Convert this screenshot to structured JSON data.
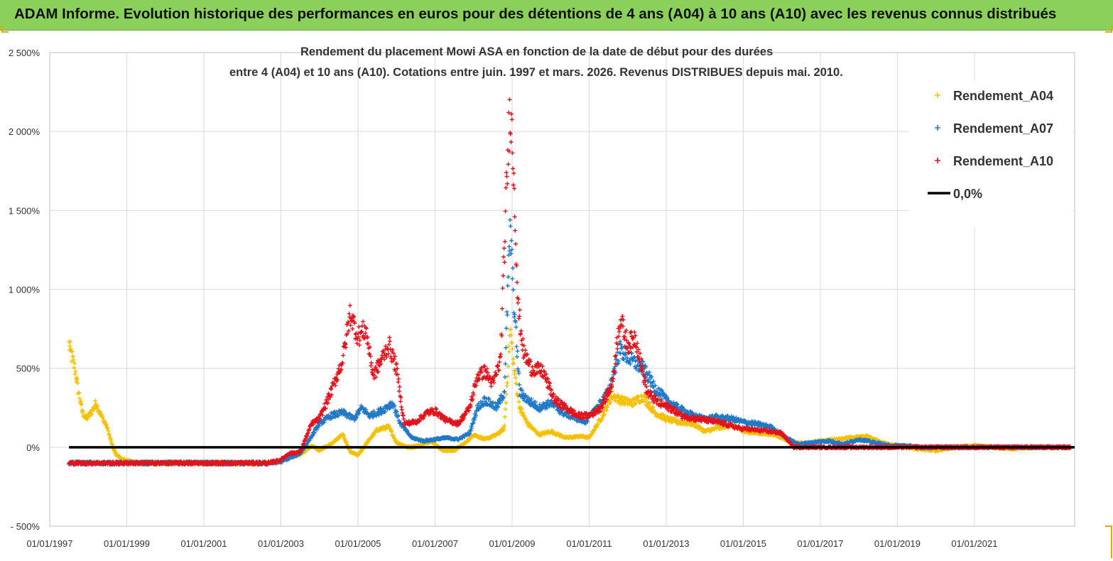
{
  "header": {
    "title": "ADAM Informe. Evolution historique des performances en euros pour des détentions de 4 ans (A04) à 10 ans (A10) avec les revenus connus distribués"
  },
  "colors": {
    "header_bg": "#8bd05a",
    "a04": "#f5c000",
    "a07": "#1f78c8",
    "a10": "#e3121b",
    "zero_line": "#000000",
    "grid": "#d9d9d9"
  },
  "chart_data": {
    "type": "scatter",
    "title_line1": "Rendement du placement Mowi ASA en fonction de la date de début pour des durées",
    "title_line2": "entre 4 (A04) et 10 ans (A10).  Cotations entre juin. 1997 et mars. 2026. Revenus DISTRIBUES depuis mai. 2010.",
    "xlabel": "",
    "ylabel": "",
    "xlim": [
      1997.0,
      2023.6
    ],
    "ylim": [
      -500,
      2500
    ],
    "x_ticks": [
      1997,
      1999,
      2001,
      2003,
      2005,
      2007,
      2009,
      2011,
      2013,
      2015,
      2017,
      2019,
      2021
    ],
    "x_tick_labels": [
      "01/01/1997",
      "01/01/1999",
      "01/01/2001",
      "01/01/2003",
      "01/01/2005",
      "01/01/2007",
      "01/01/2009",
      "01/01/2011",
      "01/01/2013",
      "01/01/2015",
      "01/01/2017",
      "01/01/2019",
      "01/01/2021"
    ],
    "y_ticks": [
      -500,
      0,
      500,
      1000,
      1500,
      2000,
      2500
    ],
    "y_tick_labels": [
      "- 500%",
      "0%",
      "500%",
      "1 000%",
      "1 500%",
      "2 000%",
      "2 500%"
    ],
    "legend_position": "top-right",
    "legend": [
      "Rendement_A04",
      "Rendement_A07",
      "Rendement_A10",
      "0,0%"
    ],
    "reference_line": {
      "name": "0,0%",
      "y": 0
    },
    "series": [
      {
        "name": "Rendement_A04",
        "x": [
          1997.5,
          1997.55,
          1997.65,
          1997.75,
          1997.85,
          1997.95,
          1998.1,
          1998.2,
          1998.3,
          1998.4,
          1998.5,
          1998.6,
          1998.7,
          1998.9,
          1999.3,
          2000,
          2001,
          2002,
          2002.6,
          2003,
          2003.3,
          2003.6,
          2003.8,
          2004.0,
          2004.3,
          2004.6,
          2004.8,
          2005.0,
          2005.3,
          2005.5,
          2005.8,
          2006.0,
          2006.3,
          2006.6,
          2006.9,
          2007.2,
          2007.5,
          2007.8,
          2008.0,
          2008.3,
          2008.6,
          2008.8,
          2008.95,
          2009.05,
          2009.2,
          2009.4,
          2009.7,
          2010.0,
          2010.4,
          2010.8,
          2011.0,
          2011.3,
          2011.6,
          2011.8,
          2012.1,
          2012.4,
          2012.7,
          2013.0,
          2013.3,
          2013.7,
          2014.0,
          2014.3,
          2014.7,
          2015.0,
          2015.4,
          2015.8,
          2016.2,
          2016.6,
          2017.0,
          2017.4,
          2017.8,
          2018.2,
          2018.6,
          2019.0,
          2019.5,
          2020.0,
          2020.5,
          2021.0,
          2021.5,
          2022.0,
          2022.5,
          2023.0,
          2023.5
        ],
        "values": [
          650,
          600,
          500,
          350,
          220,
          180,
          230,
          280,
          220,
          170,
          120,
          30,
          -40,
          -80,
          -100,
          -100,
          -100,
          -100,
          -100,
          -90,
          -60,
          -30,
          10,
          -20,
          20,
          80,
          -30,
          -50,
          50,
          110,
          130,
          30,
          0,
          10,
          40,
          -20,
          -20,
          30,
          80,
          50,
          80,
          120,
          750,
          500,
          250,
          150,
          80,
          100,
          60,
          70,
          60,
          180,
          330,
          300,
          280,
          320,
          220,
          180,
          160,
          150,
          100,
          120,
          140,
          100,
          90,
          80,
          40,
          20,
          40,
          50,
          60,
          70,
          30,
          10,
          -10,
          -20,
          0,
          10,
          0,
          -10,
          0,
          0,
          0
        ]
      },
      {
        "name": "Rendement_A07",
        "x": [
          1997.5,
          1998.0,
          1999,
          2000,
          2001,
          2002,
          2002.7,
          2003.0,
          2003.2,
          2003.5,
          2003.8,
          2004.0,
          2004.3,
          2004.6,
          2004.9,
          2005.1,
          2005.3,
          2005.6,
          2005.9,
          2006.1,
          2006.4,
          2006.7,
          2007.0,
          2007.3,
          2007.6,
          2007.9,
          2008.1,
          2008.3,
          2008.6,
          2008.8,
          2008.95,
          2009.05,
          2009.2,
          2009.4,
          2009.7,
          2010.0,
          2010.3,
          2010.6,
          2010.9,
          2011.2,
          2011.5,
          2011.8,
          2012.1,
          2012.4,
          2012.7,
          2013.0,
          2013.3,
          2013.7,
          2014.0,
          2014.3,
          2014.7,
          2015.0,
          2015.3,
          2015.7,
          2016.0,
          2016.4,
          2016.8,
          2017.2,
          2017.6,
          2018.0,
          2018.4,
          2018.8,
          2019.2,
          2019.6,
          2020.0,
          2021.0,
          2022.0,
          2023.0,
          2023.5
        ],
        "values": [
          -100,
          -100,
          -100,
          -100,
          -100,
          -100,
          -100,
          -90,
          -70,
          -40,
          70,
          150,
          200,
          220,
          180,
          250,
          200,
          230,
          280,
          150,
          60,
          40,
          50,
          60,
          50,
          90,
          250,
          300,
          250,
          350,
          1400,
          900,
          350,
          300,
          250,
          280,
          220,
          190,
          160,
          250,
          350,
          620,
          550,
          500,
          380,
          300,
          250,
          200,
          180,
          190,
          180,
          160,
          150,
          130,
          80,
          20,
          30,
          40,
          20,
          50,
          30,
          10,
          10,
          0,
          0,
          0,
          0,
          0,
          0
        ]
      },
      {
        "name": "Rendement_A10",
        "x": [
          1997.5,
          1998.0,
          1999,
          2000,
          2001,
          2002,
          2002.7,
          2003.0,
          2003.2,
          2003.5,
          2003.8,
          2004.0,
          2004.3,
          2004.6,
          2004.8,
          2005.0,
          2005.2,
          2005.4,
          2005.6,
          2005.8,
          2006.0,
          2006.2,
          2006.5,
          2006.8,
          2007.0,
          2007.3,
          2007.6,
          2007.9,
          2008.1,
          2008.3,
          2008.5,
          2008.7,
          2008.85,
          2008.95,
          2009.05,
          2009.15,
          2009.3,
          2009.5,
          2009.8,
          2010.1,
          2010.4,
          2010.7,
          2011.0,
          2011.3,
          2011.6,
          2011.8,
          2012.0,
          2012.2,
          2012.5,
          2012.8,
          2013.1,
          2013.4,
          2013.8,
          2014.1,
          2014.5,
          2014.9,
          2015.3,
          2015.7,
          2016.0,
          2016.3,
          2016.7,
          2017.5,
          2018.5,
          2019.5,
          2020.5,
          2021.5,
          2022.5,
          2023.5
        ],
        "values": [
          -100,
          -100,
          -100,
          -100,
          -100,
          -100,
          -100,
          -80,
          -40,
          -30,
          150,
          180,
          350,
          550,
          850,
          700,
          750,
          450,
          550,
          650,
          500,
          150,
          160,
          220,
          230,
          170,
          150,
          250,
          450,
          480,
          400,
          550,
          1600,
          2200,
          1700,
          900,
          600,
          500,
          480,
          300,
          250,
          200,
          200,
          250,
          400,
          820,
          650,
          700,
          350,
          280,
          250,
          200,
          180,
          170,
          150,
          120,
          110,
          100,
          90,
          0,
          0,
          0,
          0,
          0,
          0,
          0,
          0,
          0
        ]
      }
    ]
  }
}
